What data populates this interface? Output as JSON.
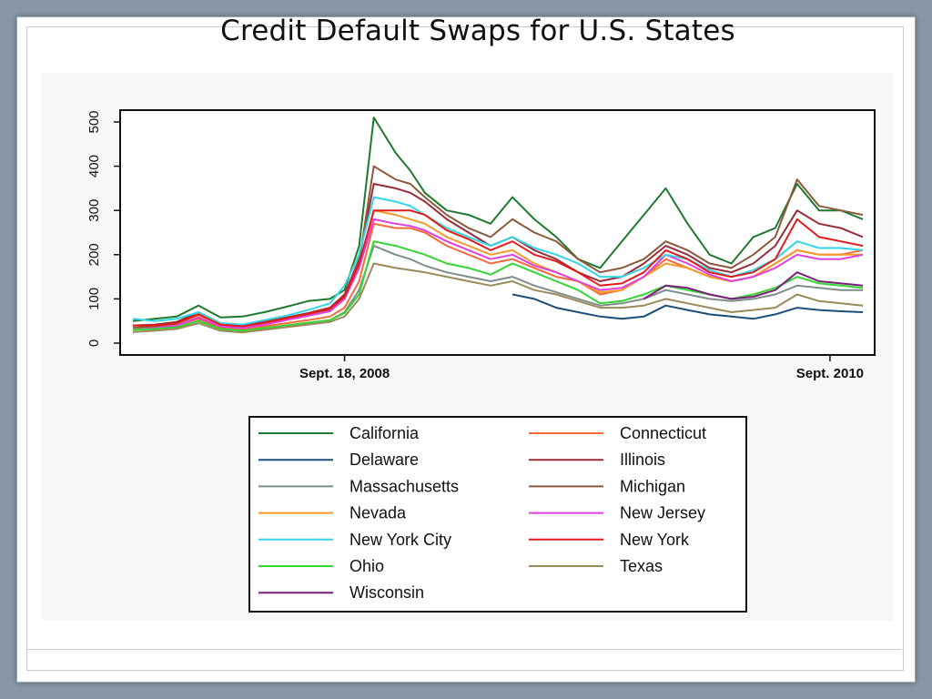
{
  "slide": {
    "title": "Credit Default Swaps for U.S. States"
  },
  "chart_data": {
    "type": "line",
    "title": "Credit Default Swaps for U.S. States",
    "xlabel": "",
    "ylabel": "",
    "ylim": [
      0,
      520
    ],
    "y_ticks": [
      0,
      100,
      200,
      300,
      400,
      500
    ],
    "x_ticks": [
      {
        "label": "Sept. 18, 2008",
        "t": 0.29
      },
      {
        "label": "Sept. 2010",
        "t": 0.955
      }
    ],
    "grid": false,
    "legend_position": "bottom",
    "x": [
      0,
      0.03,
      0.06,
      0.09,
      0.12,
      0.15,
      0.18,
      0.21,
      0.24,
      0.27,
      0.29,
      0.31,
      0.33,
      0.36,
      0.38,
      0.4,
      0.43,
      0.46,
      0.49,
      0.52,
      0.55,
      0.58,
      0.61,
      0.64,
      0.67,
      0.7,
      0.73,
      0.76,
      0.79,
      0.82,
      0.85,
      0.88,
      0.91,
      0.94,
      0.97,
      1.0
    ],
    "series": [
      {
        "name": "California",
        "color": "#1f7a2e",
        "values": [
          50,
          55,
          60,
          85,
          58,
          60,
          70,
          82,
          95,
          100,
          120,
          220,
          510,
          430,
          390,
          340,
          300,
          290,
          270,
          330,
          280,
          240,
          190,
          170,
          230,
          290,
          350,
          270,
          200,
          180,
          240,
          260,
          360,
          300,
          300,
          280
        ]
      },
      {
        "name": "Connecticut",
        "color": "#f26b3a",
        "values": [
          30,
          35,
          40,
          55,
          35,
          30,
          38,
          45,
          52,
          60,
          80,
          140,
          270,
          260,
          260,
          250,
          220,
          200,
          180,
          190,
          170,
          150,
          140,
          110,
          120,
          150,
          190,
          170,
          150,
          140,
          150,
          180,
          210,
          200,
          200,
          210
        ]
      },
      {
        "name": "Delaware",
        "color": "#1c4e7a",
        "values": [
          null,
          null,
          null,
          null,
          null,
          null,
          null,
          null,
          null,
          null,
          null,
          null,
          null,
          null,
          null,
          null,
          null,
          null,
          null,
          110,
          100,
          80,
          70,
          60,
          55,
          60,
          85,
          75,
          65,
          60,
          55,
          65,
          80,
          75,
          72,
          70
        ]
      },
      {
        "name": "Illinois",
        "color": "#9a2c3a",
        "values": [
          40,
          42,
          48,
          70,
          45,
          40,
          48,
          58,
          68,
          80,
          110,
          190,
          360,
          350,
          340,
          320,
          280,
          250,
          220,
          240,
          210,
          190,
          160,
          140,
          150,
          180,
          220,
          200,
          170,
          160,
          180,
          220,
          300,
          270,
          260,
          240
        ]
      },
      {
        "name": "Massachusetts",
        "color": "#7f8c8a",
        "values": [
          30,
          32,
          36,
          50,
          32,
          28,
          34,
          40,
          46,
          52,
          70,
          120,
          220,
          200,
          190,
          175,
          160,
          150,
          140,
          150,
          130,
          115,
          100,
          85,
          90,
          100,
          120,
          110,
          100,
          95,
          100,
          110,
          130,
          125,
          120,
          120
        ]
      },
      {
        "name": "Michigan",
        "color": "#8b5a3c",
        "values": [
          35,
          38,
          44,
          65,
          42,
          38,
          46,
          56,
          66,
          76,
          105,
          185,
          400,
          370,
          360,
          330,
          290,
          260,
          240,
          280,
          250,
          230,
          190,
          160,
          170,
          190,
          230,
          210,
          180,
          170,
          200,
          240,
          370,
          310,
          300,
          290
        ]
      },
      {
        "name": "Nevada",
        "color": "#f39a2b",
        "values": [
          30,
          34,
          40,
          60,
          38,
          34,
          42,
          52,
          62,
          72,
          100,
          170,
          300,
          290,
          280,
          270,
          240,
          220,
          200,
          210,
          180,
          160,
          140,
          115,
          120,
          150,
          180,
          170,
          150,
          140,
          150,
          180,
          210,
          200,
          200,
          200
        ]
      },
      {
        "name": "New Jersey",
        "color": "#e040e0",
        "values": [
          30,
          34,
          40,
          58,
          38,
          34,
          42,
          52,
          62,
          72,
          100,
          170,
          280,
          270,
          265,
          255,
          230,
          210,
          190,
          200,
          175,
          160,
          140,
          120,
          125,
          150,
          200,
          180,
          155,
          140,
          150,
          170,
          200,
          190,
          190,
          200
        ]
      },
      {
        "name": "New York City",
        "color": "#33d6e6",
        "values": [
          55,
          50,
          55,
          70,
          45,
          42,
          52,
          62,
          75,
          90,
          130,
          200,
          330,
          320,
          310,
          290,
          260,
          240,
          220,
          240,
          215,
          200,
          180,
          150,
          150,
          170,
          200,
          190,
          165,
          150,
          165,
          190,
          230,
          215,
          215,
          210
        ]
      },
      {
        "name": "New York",
        "color": "#e21b1b",
        "values": [
          40,
          40,
          45,
          65,
          42,
          38,
          46,
          56,
          66,
          78,
          105,
          180,
          300,
          300,
          300,
          290,
          255,
          235,
          210,
          230,
          200,
          185,
          160,
          130,
          135,
          160,
          210,
          190,
          160,
          150,
          160,
          190,
          280,
          240,
          230,
          220
        ]
      },
      {
        "name": "Ohio",
        "color": "#33d633",
        "values": [
          30,
          32,
          36,
          50,
          32,
          28,
          34,
          40,
          46,
          52,
          68,
          110,
          230,
          220,
          210,
          200,
          180,
          170,
          155,
          180,
          160,
          140,
          120,
          90,
          95,
          110,
          130,
          120,
          110,
          100,
          110,
          125,
          150,
          135,
          130,
          125
        ]
      },
      {
        "name": "Texas",
        "color": "#9c8a5a",
        "values": [
          25,
          28,
          32,
          45,
          28,
          24,
          30,
          36,
          42,
          48,
          60,
          100,
          180,
          170,
          165,
          160,
          150,
          140,
          130,
          140,
          120,
          110,
          95,
          80,
          80,
          85,
          100,
          90,
          80,
          70,
          75,
          80,
          110,
          95,
          90,
          85
        ]
      },
      {
        "name": "Wisconsin",
        "color": "#7a1f7a",
        "values": [
          null,
          null,
          null,
          null,
          null,
          null,
          null,
          null,
          null,
          null,
          null,
          null,
          null,
          null,
          null,
          null,
          null,
          null,
          null,
          null,
          null,
          null,
          null,
          null,
          null,
          100,
          130,
          125,
          110,
          100,
          105,
          120,
          160,
          140,
          135,
          130
        ]
      }
    ]
  }
}
